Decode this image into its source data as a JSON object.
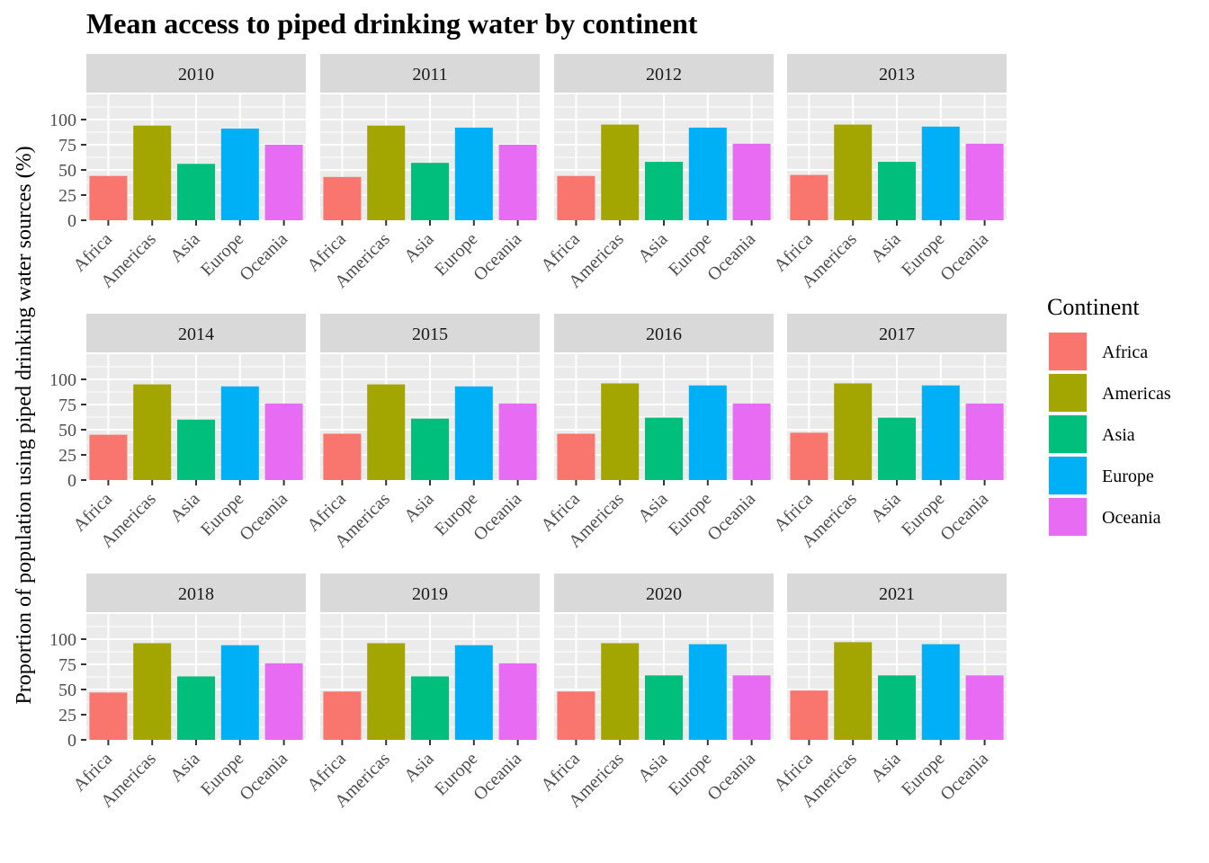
{
  "chart_data": {
    "type": "bar",
    "title": "Mean access to piped drinking water by continent",
    "ylabel": "Proportion of population using piped drinking water sources (%)",
    "xlabel": "",
    "ylim": [
      0,
      125
    ],
    "yticks": [
      0,
      25,
      50,
      75,
      100
    ],
    "categories": [
      "Africa",
      "Americas",
      "Asia",
      "Europe",
      "Oceania"
    ],
    "colors": [
      "#F8766D",
      "#A3A500",
      "#00BF7D",
      "#00B0F6",
      "#E76BF3"
    ],
    "legend": {
      "title": "Continent",
      "position": "right",
      "entries": [
        "Africa",
        "Americas",
        "Asia",
        "Europe",
        "Oceania"
      ]
    },
    "grid": true,
    "facets": [
      {
        "label": "2010",
        "values": [
          44,
          94,
          56,
          91,
          75
        ]
      },
      {
        "label": "2011",
        "values": [
          43,
          94,
          57,
          92,
          75
        ]
      },
      {
        "label": "2012",
        "values": [
          44,
          95,
          58,
          92,
          76
        ]
      },
      {
        "label": "2013",
        "values": [
          45,
          95,
          58,
          93,
          76
        ]
      },
      {
        "label": "2014",
        "values": [
          45,
          95,
          60,
          93,
          76
        ]
      },
      {
        "label": "2015",
        "values": [
          46,
          95,
          61,
          93,
          76
        ]
      },
      {
        "label": "2016",
        "values": [
          46,
          96,
          62,
          94,
          76
        ]
      },
      {
        "label": "2017",
        "values": [
          47,
          96,
          62,
          94,
          76
        ]
      },
      {
        "label": "2018",
        "values": [
          47,
          96,
          63,
          94,
          76
        ]
      },
      {
        "label": "2019",
        "values": [
          48,
          96,
          63,
          94,
          76
        ]
      },
      {
        "label": "2020",
        "values": [
          48,
          96,
          64,
          95,
          64
        ]
      },
      {
        "label": "2021",
        "values": [
          49,
          97,
          64,
          95,
          64
        ]
      }
    ]
  }
}
